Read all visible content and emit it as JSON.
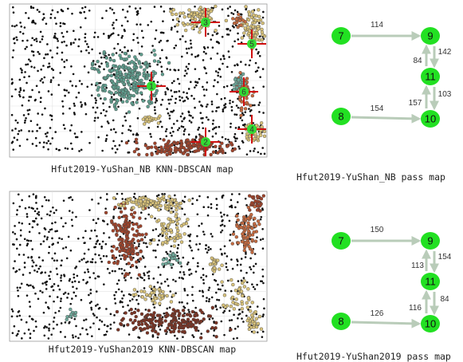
{
  "maps": [
    {
      "caption": "Hfut2019-YuShan_NB KNN-DBSCAN map",
      "clusters": [
        {
          "label": "1"
        },
        {
          "label": "2"
        },
        {
          "label": "3"
        },
        {
          "label": "4"
        },
        {
          "label": "5"
        },
        {
          "label": "6"
        }
      ]
    },
    {
      "caption": "Hfut2019-YuShan2019 KNN-DBSCAN map",
      "clusters": []
    }
  ],
  "pass_maps": [
    {
      "caption": "Hfut2019-YuShan_NB pass map",
      "nodes": [
        {
          "label": "7"
        },
        {
          "label": "9"
        },
        {
          "label": "11"
        },
        {
          "label": "8"
        },
        {
          "label": "10"
        }
      ],
      "edges": [
        {
          "from": "7",
          "to": "9",
          "count": 114
        },
        {
          "from": "9",
          "to": "11",
          "count": 142
        },
        {
          "from": "11",
          "to": "9",
          "count": 84
        },
        {
          "from": "11",
          "to": "10",
          "count": 103
        },
        {
          "from": "10",
          "to": "11",
          "count": 157
        },
        {
          "from": "8",
          "to": "10",
          "count": 154
        }
      ]
    },
    {
      "caption": "Hfut2019-YuShan2019 pass map",
      "nodes": [
        {
          "label": "7"
        },
        {
          "label": "9"
        },
        {
          "label": "11"
        },
        {
          "label": "8"
        },
        {
          "label": "10"
        }
      ],
      "edges": [
        {
          "from": "7",
          "to": "9",
          "count": 150
        },
        {
          "from": "9",
          "to": "11",
          "count": 154
        },
        {
          "from": "11",
          "to": "9",
          "count": 113
        },
        {
          "from": "11",
          "to": "10",
          "count": 84
        },
        {
          "from": "10",
          "to": "11",
          "count": 116
        },
        {
          "from": "8",
          "to": "10",
          "count": 126
        }
      ]
    }
  ]
}
